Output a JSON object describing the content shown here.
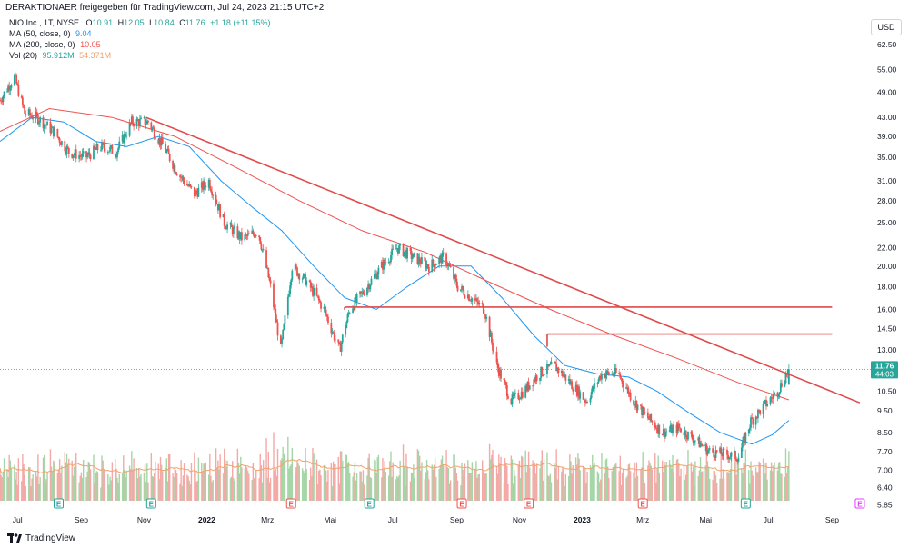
{
  "header": {
    "credit": "DERAKTIONAER freigegeben für TradingView.com, Jul 24, 2023 21:15 UTC+2"
  },
  "legend": {
    "symbol": "NIO Inc., 1T, NYSE",
    "ohlc": [
      {
        "k": "O",
        "v": "10.91"
      },
      {
        "k": "H",
        "v": "12.05"
      },
      {
        "k": "L",
        "v": "10.84"
      },
      {
        "k": "C",
        "v": "11.76"
      },
      {
        "k": "",
        "v": "+1.18 (+11.15%)"
      }
    ],
    "ma50_label": "MA (50, close, 0)",
    "ma50_value": "9.04",
    "ma200_label": "MA (200, close, 0)",
    "ma200_value": "10.05",
    "vol_label": "Vol (20)",
    "vol_value1": "95.912M",
    "vol_value2": "54.371M"
  },
  "currency": "USD",
  "price_badge": {
    "price": "11.76",
    "countdown": "44:03"
  },
  "footer": {
    "brand": "TradingView"
  },
  "colors": {
    "up": "#26a69a",
    "down": "#ef5350",
    "ma50": "#2196f3",
    "ma200": "#ef5350",
    "trend": "#e04a4a",
    "vol_up": "#a5d6a7",
    "vol_down": "#f4a9a7",
    "vol_ma": "#f2a36b",
    "badge": "#26a69a",
    "earnings": "#26a69a",
    "earnings_neg": "#ef5350",
    "earnings_future": "#e040fb"
  },
  "chart_data": {
    "type": "candlestick",
    "title": "NIO Inc., 1T, NYSE",
    "scale": "log",
    "ylim": [
      5.6,
      70
    ],
    "y_ticks": [
      "62.50",
      "55.00",
      "49.00",
      "43.00",
      "39.00",
      "35.00",
      "31.00",
      "28.00",
      "25.00",
      "22.00",
      "20.00",
      "18.00",
      "16.00",
      "14.50",
      "13.00",
      "11.76",
      "10.50",
      "9.50",
      "8.50",
      "7.70",
      "7.00",
      "6.40",
      "5.85"
    ],
    "x_ticks": [
      "Jul",
      "Sep",
      "Nov",
      "2022",
      "Mrz",
      "Mai",
      "Jul",
      "Sep",
      "Nov",
      "2023",
      "Mrz",
      "Mai",
      "Jul",
      "Sep"
    ],
    "x_range": [
      "2021-06-14",
      "2023-10-06"
    ],
    "price_path": [
      [
        "2021-06-14",
        47
      ],
      [
        "2021-06-28",
        53
      ],
      [
        "2021-07-08",
        44
      ],
      [
        "2021-07-20",
        43
      ],
      [
        "2021-08-05",
        40
      ],
      [
        "2021-08-20",
        36
      ],
      [
        "2021-09-05",
        35
      ],
      [
        "2021-09-20",
        37
      ],
      [
        "2021-10-05",
        36
      ],
      [
        "2021-10-20",
        42
      ],
      [
        "2021-11-05",
        42
      ],
      [
        "2021-11-20",
        37
      ],
      [
        "2021-12-05",
        32
      ],
      [
        "2021-12-20",
        29
      ],
      [
        "2022-01-03",
        31
      ],
      [
        "2022-01-18",
        25
      ],
      [
        "2022-02-05",
        23
      ],
      [
        "2022-02-20",
        24
      ],
      [
        "2022-03-04",
        18
      ],
      [
        "2022-03-14",
        13
      ],
      [
        "2022-03-25",
        20
      ],
      [
        "2022-04-08",
        18.5
      ],
      [
        "2022-04-25",
        16
      ],
      [
        "2022-05-10",
        13
      ],
      [
        "2022-05-20",
        16
      ],
      [
        "2022-06-02",
        17.5
      ],
      [
        "2022-06-20",
        20
      ],
      [
        "2022-07-05",
        22
      ],
      [
        "2022-07-20",
        21
      ],
      [
        "2022-08-05",
        20
      ],
      [
        "2022-08-20",
        21
      ],
      [
        "2022-09-02",
        18
      ],
      [
        "2022-09-15",
        17
      ],
      [
        "2022-09-28",
        16
      ],
      [
        "2022-10-10",
        12
      ],
      [
        "2022-10-24",
        10
      ],
      [
        "2022-11-05",
        10.5
      ],
      [
        "2022-11-20",
        11.5
      ],
      [
        "2022-12-05",
        12
      ],
      [
        "2022-12-20",
        11
      ],
      [
        "2023-01-05",
        10
      ],
      [
        "2023-01-20",
        11.5
      ],
      [
        "2023-02-05",
        11.5
      ],
      [
        "2023-02-20",
        10
      ],
      [
        "2023-03-05",
        9.2
      ],
      [
        "2023-03-20",
        8.5
      ],
      [
        "2023-04-05",
        8.7
      ],
      [
        "2023-04-20",
        8.2
      ],
      [
        "2023-05-05",
        7.7
      ],
      [
        "2023-05-20",
        7.6
      ],
      [
        "2023-06-02",
        7.5
      ],
      [
        "2023-06-14",
        9
      ],
      [
        "2023-06-28",
        9.8
      ],
      [
        "2023-07-10",
        10.5
      ],
      [
        "2023-07-21",
        11.76
      ]
    ],
    "series": [
      {
        "name": "MA (50, close, 0)",
        "values": [
          [
            "2021-06-14",
            38
          ],
          [
            "2021-07-15",
            43
          ],
          [
            "2021-08-15",
            42
          ],
          [
            "2021-09-15",
            38
          ],
          [
            "2021-10-15",
            37
          ],
          [
            "2021-11-15",
            39
          ],
          [
            "2021-12-15",
            37
          ],
          [
            "2022-01-15",
            31
          ],
          [
            "2022-02-15",
            27
          ],
          [
            "2022-03-15",
            24
          ],
          [
            "2022-04-15",
            20
          ],
          [
            "2022-05-15",
            17
          ],
          [
            "2022-06-15",
            16
          ],
          [
            "2022-07-15",
            18
          ],
          [
            "2022-08-15",
            20
          ],
          [
            "2022-09-15",
            20
          ],
          [
            "2022-10-15",
            17
          ],
          [
            "2022-11-15",
            14
          ],
          [
            "2022-12-15",
            12
          ],
          [
            "2023-01-15",
            11.5
          ],
          [
            "2023-02-15",
            11.3
          ],
          [
            "2023-03-15",
            10.5
          ],
          [
            "2023-04-15",
            9.4
          ],
          [
            "2023-05-15",
            8.5
          ],
          [
            "2023-06-15",
            8
          ],
          [
            "2023-07-05",
            8.4
          ],
          [
            "2023-07-21",
            9.04
          ]
        ]
      },
      {
        "name": "MA (200, close, 0)",
        "values": [
          [
            "2021-06-14",
            40
          ],
          [
            "2021-08-01",
            45
          ],
          [
            "2021-10-01",
            43
          ],
          [
            "2021-12-01",
            39
          ],
          [
            "2022-02-01",
            33
          ],
          [
            "2022-04-01",
            28
          ],
          [
            "2022-06-01",
            24
          ],
          [
            "2022-08-01",
            21.5
          ],
          [
            "2022-10-01",
            18.5
          ],
          [
            "2022-12-01",
            16
          ],
          [
            "2023-02-01",
            14
          ],
          [
            "2023-04-01",
            12.5
          ],
          [
            "2023-06-01",
            11
          ],
          [
            "2023-07-21",
            10.05
          ]
        ]
      }
    ],
    "trendline": [
      [
        "2021-11-03",
        43
      ],
      [
        "2023-09-28",
        9.9
      ]
    ],
    "horizontal_levels": [
      {
        "from": "2022-05-15",
        "to": "2023-09-01",
        "value": 16.2
      },
      {
        "from": "2022-11-28",
        "to": "2023-09-01",
        "value": 14.1
      }
    ],
    "last_price": 11.76,
    "volume": {
      "name": "Vol (20)",
      "values_millions": {
        "current": 95.912,
        "ma": 54.371
      }
    },
    "earnings_markers": [
      {
        "date": "2021-08-10",
        "kind": "positive"
      },
      {
        "date": "2021-11-08",
        "kind": "positive"
      },
      {
        "date": "2022-03-24",
        "kind": "negative"
      },
      {
        "date": "2022-06-08",
        "kind": "positive"
      },
      {
        "date": "2022-09-06",
        "kind": "negative"
      },
      {
        "date": "2022-11-10",
        "kind": "negative"
      },
      {
        "date": "2023-03-01",
        "kind": "negative"
      },
      {
        "date": "2023-06-09",
        "kind": "positive"
      },
      {
        "date": "2023-09-28",
        "kind": "future"
      }
    ]
  }
}
